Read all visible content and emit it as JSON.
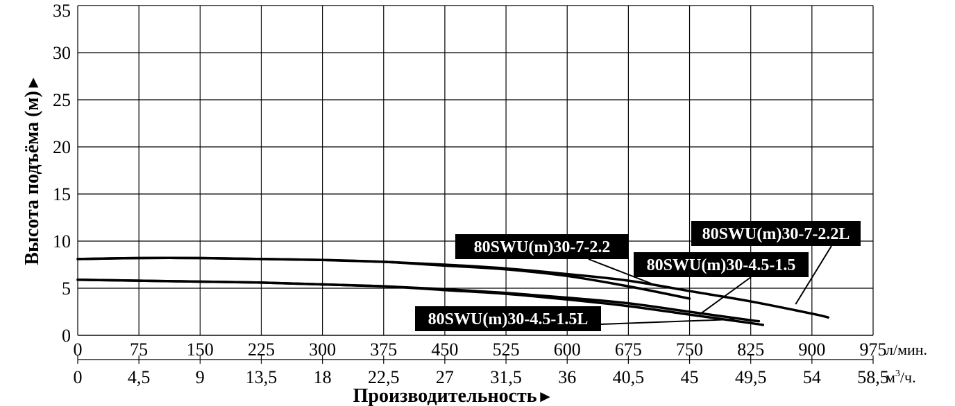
{
  "chart_data": {
    "type": "line",
    "title": "",
    "xlabel": "Производительность",
    "xlabel_arrow": "►",
    "ylabel": "Высота подъёма (м)",
    "ylabel_arrow": "►",
    "x_unit": "л/мин.",
    "x2_unit_base": "м",
    "x2_unit_sup": "3",
    "x2_unit_tail": "/ч.",
    "xlim": [
      0,
      975
    ],
    "ylim": [
      0,
      35
    ],
    "grid": true,
    "x_ticks": [
      "0",
      "75",
      "150",
      "225",
      "300",
      "375",
      "450",
      "525",
      "600",
      "675",
      "750",
      "825",
      "900",
      "975"
    ],
    "x2_ticks": [
      "0",
      "4,5",
      "9",
      "13,5",
      "18",
      "22,5",
      "27",
      "31,5",
      "36",
      "40,5",
      "45",
      "49,5",
      "54",
      "58,5"
    ],
    "y_ticks": [
      "0",
      "5",
      "10",
      "15",
      "20",
      "25",
      "30",
      "35"
    ],
    "series": [
      {
        "name": "80SWU(m)30-7-2.2",
        "x": [
          0,
          75,
          150,
          225,
          300,
          375,
          450,
          525,
          600,
          675,
          750
        ],
        "y": [
          8.1,
          8.2,
          8.2,
          8.1,
          8.0,
          7.8,
          7.4,
          7.0,
          6.3,
          5.2,
          3.9
        ]
      },
      {
        "name": "80SWU(m)30-7-2.2L",
        "x": [
          0,
          75,
          150,
          225,
          300,
          375,
          450,
          525,
          600,
          675,
          750,
          825,
          900,
          920
        ],
        "y": [
          8.1,
          8.2,
          8.2,
          8.1,
          8.0,
          7.8,
          7.5,
          7.1,
          6.5,
          5.8,
          4.7,
          3.6,
          2.3,
          1.9
        ]
      },
      {
        "name": "80SWU(m)30-4.5-1.5",
        "x": [
          0,
          75,
          150,
          225,
          300,
          375,
          450,
          525,
          600,
          675,
          750,
          825,
          835
        ],
        "y": [
          5.9,
          5.8,
          5.7,
          5.6,
          5.4,
          5.2,
          4.9,
          4.5,
          4.0,
          3.4,
          2.5,
          1.6,
          1.5
        ]
      },
      {
        "name": "80SWU(m)30-4.5-1.5L",
        "x": [
          0,
          75,
          150,
          225,
          300,
          375,
          450,
          525,
          600,
          675,
          750,
          825,
          840
        ],
        "y": [
          5.9,
          5.8,
          5.7,
          5.6,
          5.4,
          5.2,
          4.8,
          4.4,
          3.8,
          3.1,
          2.2,
          1.3,
          1.1
        ]
      }
    ],
    "annotations": [
      {
        "text": "80SWU(m)30-7-2.2",
        "target_x": 703,
        "target_y": 5.5
      },
      {
        "text": "80SWU(m)30-7-2.2L",
        "target_x": 880,
        "target_y": 3.3
      },
      {
        "text": "80SWU(m)30-4.5-1.5",
        "target_x": 762,
        "target_y": 2.2
      },
      {
        "text": "80SWU(m)30-4.5-1.5L",
        "target_x": 805,
        "target_y": 1.7
      }
    ]
  }
}
